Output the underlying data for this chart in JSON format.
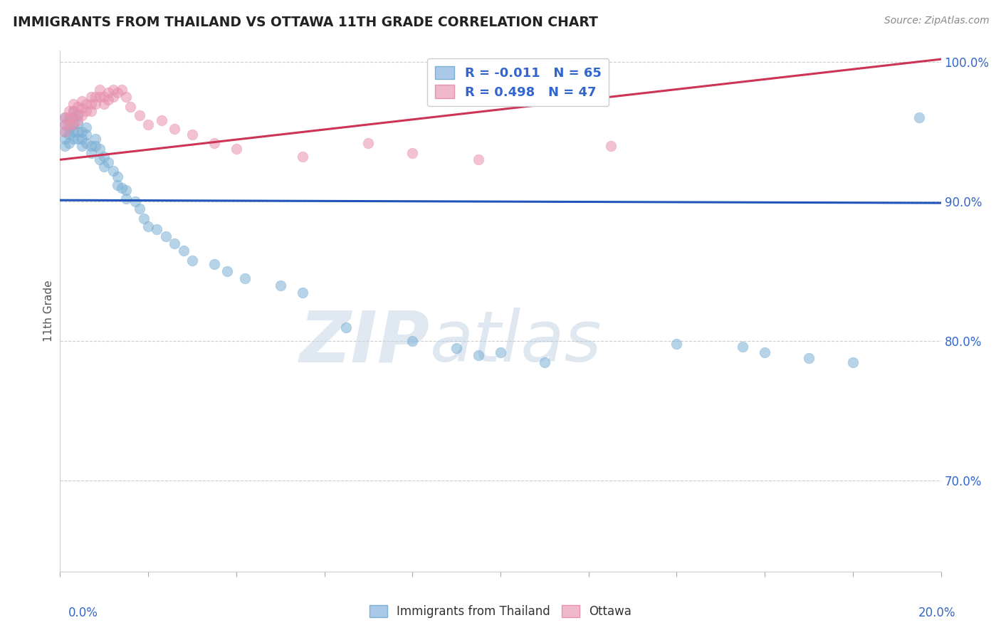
{
  "title": "IMMIGRANTS FROM THAILAND VS OTTAWA 11TH GRADE CORRELATION CHART",
  "source": "Source: ZipAtlas.com",
  "ylabel": "11th Grade",
  "legend_label1": "Immigrants from Thailand",
  "legend_label2": "Ottawa",
  "r1": -0.011,
  "n1": 65,
  "r2": 0.498,
  "n2": 47,
  "xmin": 0.0,
  "xmax": 0.2,
  "ymin": 0.635,
  "ymax": 1.008,
  "yticks": [
    0.7,
    0.8,
    0.9,
    1.0
  ],
  "ytick_labels": [
    "70.0%",
    "80.0%",
    "90.0%",
    "100.0%"
  ],
  "blue_color": "#7bafd4",
  "pink_color": "#e891ae",
  "blue_line_color": "#2255bb",
  "pink_line_color": "#cc3355",
  "watermark_zip": "ZIP",
  "watermark_atlas": "atlas",
  "blue_trend_y0": 0.901,
  "blue_trend_y1": 0.899,
  "pink_trend_y0": 0.93,
  "pink_trend_y1": 1.002,
  "blue_x": [
    0.001,
    0.001,
    0.001,
    0.001,
    0.001,
    0.002,
    0.002,
    0.002,
    0.002,
    0.003,
    0.003,
    0.003,
    0.003,
    0.003,
    0.004,
    0.004,
    0.004,
    0.004,
    0.005,
    0.005,
    0.005,
    0.006,
    0.006,
    0.006,
    0.007,
    0.007,
    0.008,
    0.008,
    0.009,
    0.009,
    0.01,
    0.01,
    0.011,
    0.012,
    0.013,
    0.013,
    0.014,
    0.015,
    0.015,
    0.017,
    0.018,
    0.019,
    0.02,
    0.022,
    0.024,
    0.026,
    0.028,
    0.03,
    0.035,
    0.038,
    0.042,
    0.05,
    0.055,
    0.065,
    0.08,
    0.09,
    0.095,
    0.1,
    0.11,
    0.14,
    0.155,
    0.16,
    0.17,
    0.18,
    0.195
  ],
  "blue_y": [
    0.96,
    0.955,
    0.95,
    0.945,
    0.94,
    0.958,
    0.952,
    0.948,
    0.942,
    0.965,
    0.96,
    0.955,
    0.95,
    0.945,
    0.962,
    0.956,
    0.95,
    0.945,
    0.95,
    0.945,
    0.94,
    0.953,
    0.948,
    0.942,
    0.94,
    0.935,
    0.945,
    0.94,
    0.938,
    0.93,
    0.932,
    0.925,
    0.928,
    0.922,
    0.918,
    0.912,
    0.91,
    0.908,
    0.902,
    0.9,
    0.895,
    0.888,
    0.882,
    0.88,
    0.875,
    0.87,
    0.865,
    0.858,
    0.855,
    0.85,
    0.845,
    0.84,
    0.835,
    0.81,
    0.8,
    0.795,
    0.79,
    0.792,
    0.785,
    0.798,
    0.796,
    0.792,
    0.788,
    0.785,
    0.96
  ],
  "pink_x": [
    0.001,
    0.001,
    0.001,
    0.002,
    0.002,
    0.002,
    0.003,
    0.003,
    0.003,
    0.003,
    0.004,
    0.004,
    0.004,
    0.005,
    0.005,
    0.005,
    0.006,
    0.006,
    0.007,
    0.007,
    0.007,
    0.008,
    0.008,
    0.009,
    0.009,
    0.01,
    0.01,
    0.011,
    0.011,
    0.012,
    0.012,
    0.013,
    0.014,
    0.015,
    0.016,
    0.018,
    0.02,
    0.023,
    0.026,
    0.03,
    0.035,
    0.04,
    0.055,
    0.07,
    0.08,
    0.095,
    0.125
  ],
  "pink_y": [
    0.96,
    0.955,
    0.95,
    0.965,
    0.96,
    0.955,
    0.97,
    0.965,
    0.96,
    0.955,
    0.968,
    0.963,
    0.958,
    0.972,
    0.967,
    0.962,
    0.97,
    0.965,
    0.975,
    0.97,
    0.965,
    0.975,
    0.97,
    0.98,
    0.975,
    0.975,
    0.97,
    0.978,
    0.973,
    0.98,
    0.975,
    0.978,
    0.98,
    0.975,
    0.968,
    0.962,
    0.955,
    0.958,
    0.952,
    0.948,
    0.942,
    0.938,
    0.932,
    0.942,
    0.935,
    0.93,
    0.94
  ]
}
